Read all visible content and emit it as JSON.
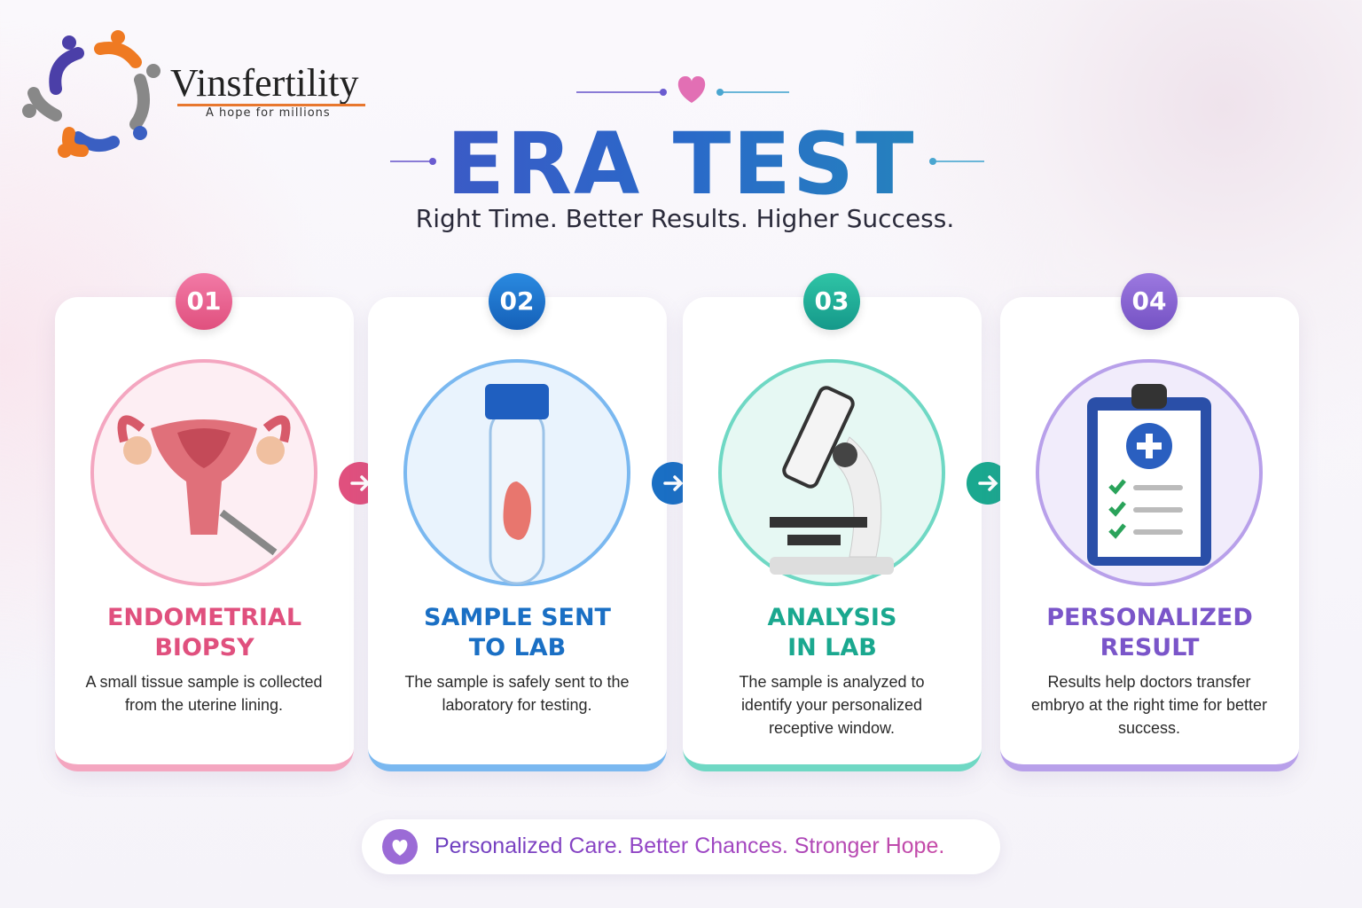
{
  "logo": {
    "name": "Vinsfertility",
    "tagline": "A hope for millions"
  },
  "header": {
    "title": "ERA TEST",
    "subtitle": "Right Time. Better Results. Higher Success."
  },
  "steps": [
    {
      "number": "01",
      "title_lines": [
        "ENDOMETRIAL",
        "BIOPSY"
      ],
      "description": "A small tissue sample is collected from the uterine lining."
    },
    {
      "number": "02",
      "title_lines": [
        "SAMPLE SENT",
        "TO LAB"
      ],
      "description": "The sample is safely sent to the laboratory for testing."
    },
    {
      "number": "03",
      "title_lines": [
        "ANALYSIS",
        "IN LAB"
      ],
      "description": "The sample is analyzed to identify your personalized receptive window."
    },
    {
      "number": "04",
      "title_lines": [
        "PERSONALIZED",
        "RESULT"
      ],
      "description": "Results help doctors transfer embryo at the right time for better success."
    }
  ],
  "footer": {
    "tagline": "Personalized Care. Better Chances. Stronger Hope."
  }
}
